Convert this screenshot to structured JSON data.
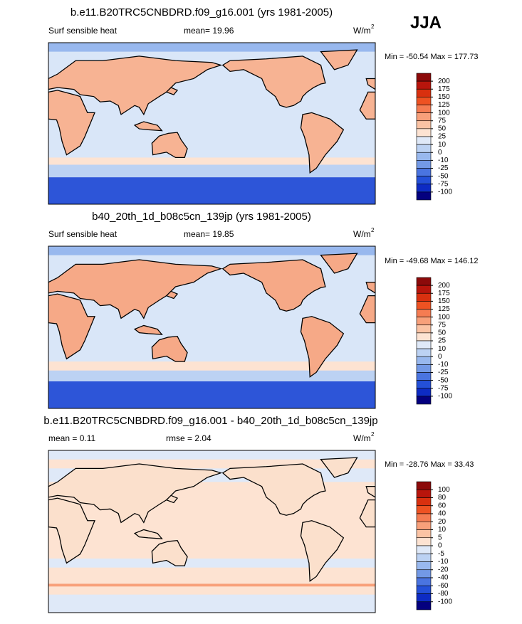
{
  "season": "JJA",
  "panels": [
    {
      "title": "b.e11.B20TRC5CNBDRD.f09_g16.001 (yrs 1981-2005)",
      "left": "Surf sensible heat",
      "mid": "mean=  19.96",
      "unit": "W/m",
      "unit_exp": "2",
      "minmax": "Min = -50.54 Max = 177.73",
      "levels": [
        200,
        175,
        150,
        125,
        100,
        75,
        50,
        25,
        10,
        0,
        -10,
        -25,
        -50,
        -75,
        -100
      ],
      "colors": [
        "#8c0a0a",
        "#b8150c",
        "#d9300f",
        "#ee5222",
        "#f57c52",
        "#f8a07a",
        "#fbc3a4",
        "#fde3d2",
        "#dfe9f8",
        "#bcd2f3",
        "#98b8ee",
        "#7399e6",
        "#4a74e0",
        "#2450d8",
        "#0d2bc4",
        "#04007f"
      ]
    },
    {
      "title": "b40_20th_1d_b08c5cn_139jp (yrs 1981-2005)",
      "left": "Surf sensible heat",
      "mid": "mean=  19.85",
      "unit": "W/m",
      "unit_exp": "2",
      "minmax": "Min = -49.68 Max = 146.12",
      "levels": [
        200,
        175,
        150,
        125,
        100,
        75,
        50,
        25,
        10,
        0,
        -10,
        -25,
        -50,
        -75,
        -100
      ],
      "colors": [
        "#8c0a0a",
        "#b8150c",
        "#d9300f",
        "#ee5222",
        "#f57c52",
        "#f8a07a",
        "#fbc3a4",
        "#fde3d2",
        "#dfe9f8",
        "#bcd2f3",
        "#98b8ee",
        "#7399e6",
        "#4a74e0",
        "#2450d8",
        "#0d2bc4",
        "#04007f"
      ]
    },
    {
      "title": "b.e11.B20TRC5CNBDRD.f09_g16.001 - b40_20th_1d_b08c5cn_139jp",
      "left": "mean =   0.11",
      "mid": "rmse =   2.04",
      "unit": "W/m",
      "unit_exp": "2",
      "minmax": "Min = -28.76 Max =  33.43",
      "levels": [
        100,
        80,
        60,
        40,
        20,
        10,
        5,
        0,
        -5,
        -10,
        -20,
        -40,
        -60,
        -80,
        -100
      ],
      "colors": [
        "#8c0a0a",
        "#b8150c",
        "#d9300f",
        "#ee5222",
        "#f57c52",
        "#f8a07a",
        "#fbc3a4",
        "#fde3d2",
        "#dfe9f8",
        "#bcd2f3",
        "#98b8ee",
        "#7399e6",
        "#4a74e0",
        "#2450d8",
        "#0d2bc4",
        "#04007f"
      ]
    }
  ]
}
